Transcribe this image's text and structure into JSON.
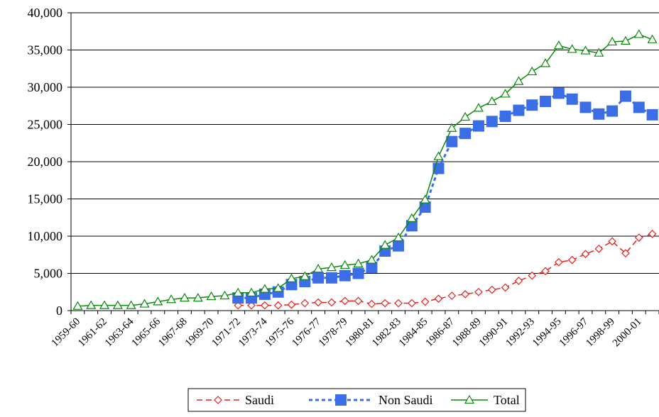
{
  "chart_data": {
    "type": "line",
    "title": "",
    "xlabel": "",
    "ylabel": "",
    "ylim": [
      0,
      40000
    ],
    "yticks": [
      0,
      5000,
      10000,
      15000,
      20000,
      25000,
      30000,
      35000,
      40000
    ],
    "ytick_labels": [
      "0",
      "5,000",
      "10,000",
      "15,000",
      "20,000",
      "25,000",
      "30,000",
      "35,000",
      "40,000"
    ],
    "grid": "horizontal",
    "legend_position": "bottom-center",
    "categories": [
      "1959-60",
      "1960-61",
      "1961-62",
      "1962-63",
      "1963-64",
      "1964-65",
      "1965-66",
      "1966-67",
      "1967-68",
      "1968-69",
      "1969-70",
      "1970-71",
      "1971-72",
      "1972-73",
      "1973-74",
      "1974-75",
      "1975-76",
      "1975-76b",
      "1976-77",
      "1977-78",
      "1978-79",
      "1979-80",
      "1980-81",
      "1981-82",
      "1982-83",
      "1983-84",
      "1984-85",
      "1985-86",
      "1986-87",
      "1987-88",
      "1988-89",
      "1989-90",
      "1990-91",
      "1991-92",
      "1992-93",
      "1993-94",
      "1994-95",
      "1995-96",
      "1996-97",
      "1997-98",
      "1998-99",
      "1999-00",
      "2000-01",
      "2001-02"
    ],
    "x_labels_shown": [
      {
        "index": 0,
        "label": "1959-60"
      },
      {
        "index": 2,
        "label": "1961-62"
      },
      {
        "index": 4,
        "label": "1963-64"
      },
      {
        "index": 6,
        "label": "1965-66"
      },
      {
        "index": 8,
        "label": "1967-68"
      },
      {
        "index": 10,
        "label": "1969-70"
      },
      {
        "index": 12,
        "label": "1971-72"
      },
      {
        "index": 14,
        "label": "1973-74"
      },
      {
        "index": 16,
        "label": "1975-76"
      },
      {
        "index": 18,
        "label": "1976-77"
      },
      {
        "index": 20,
        "label": "1978-79"
      },
      {
        "index": 22,
        "label": "1980-81"
      },
      {
        "index": 24,
        "label": "1982-83"
      },
      {
        "index": 26,
        "label": "1984-85"
      },
      {
        "index": 28,
        "label": "1986-87"
      },
      {
        "index": 30,
        "label": "1988-89"
      },
      {
        "index": 32,
        "label": "1990-91"
      },
      {
        "index": 34,
        "label": "1992-93"
      },
      {
        "index": 36,
        "label": "1994-95"
      },
      {
        "index": 38,
        "label": "1996-97"
      },
      {
        "index": 40,
        "label": "1998-99"
      },
      {
        "index": 42,
        "label": "2000-01"
      }
    ],
    "series": [
      {
        "name": "Saudi",
        "color": "#e8201c",
        "dash": "dashed",
        "marker": "diamond",
        "values": [
          null,
          null,
          null,
          null,
          null,
          null,
          null,
          null,
          null,
          null,
          null,
          null,
          700,
          700,
          700,
          700,
          800,
          1000,
          1100,
          1100,
          1300,
          1300,
          900,
          1000,
          1000,
          1000,
          1200,
          1600,
          2000,
          2200,
          2500,
          2800,
          3100,
          4000,
          4700,
          5300,
          6500,
          6800,
          7600,
          8300,
          9300,
          7700,
          9800,
          10300
        ]
      },
      {
        "name": "Non Saudi",
        "color": "#3b6ee6",
        "dash": "dotted",
        "marker": "square",
        "values": [
          null,
          null,
          null,
          null,
          null,
          null,
          null,
          null,
          null,
          null,
          null,
          null,
          1700,
          1700,
          2200,
          2500,
          3500,
          3900,
          4400,
          4400,
          4700,
          5000,
          5800,
          8000,
          8700,
          11400,
          13900,
          19100,
          22700,
          23800,
          24800,
          25400,
          26100,
          26900,
          27600,
          28100,
          29200,
          28400,
          27300,
          26400,
          26800,
          28800,
          27300,
          26300
        ]
      },
      {
        "name": "Total",
        "color": "#0a8a0a",
        "dash": "solid",
        "marker": "triangle",
        "values": [
          600,
          700,
          700,
          700,
          700,
          900,
          1200,
          1500,
          1700,
          1700,
          1900,
          2000,
          2400,
          2400,
          2900,
          3000,
          4300,
          4600,
          5600,
          5800,
          6100,
          6300,
          6800,
          8800,
          9800,
          12400,
          14900,
          20700,
          24500,
          26000,
          27200,
          28100,
          29100,
          30800,
          32100,
          33200,
          35600,
          35100,
          34900,
          34600,
          36100,
          36200,
          37100,
          36400
        ]
      }
    ]
  }
}
